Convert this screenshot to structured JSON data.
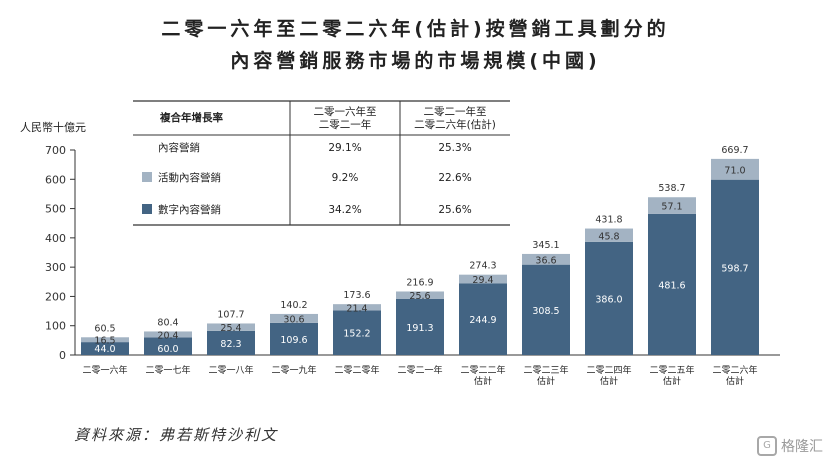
{
  "title_line1": "二零一六年至二零二六年(估計)按營銷工具劃分的",
  "title_line2": "內容營銷服務市場的市場規模(中國)",
  "source": "資料來源：弗若斯特沙利文",
  "watermark": "格隆汇",
  "colors": {
    "digital": "#436483",
    "event": "#a3b3c3",
    "table_line": "#333333"
  },
  "growth_table": {
    "header": [
      "複合年增長率",
      "二零一六年至\n二零二一年",
      "二零二一年至\n二零二六年(估計)"
    ],
    "rows": [
      {
        "label": "內容營銷",
        "swatch": null,
        "c1": "29.1%",
        "c2": "25.3%"
      },
      {
        "label": "活動內容營銷",
        "swatch": "event",
        "c1": "9.2%",
        "c2": "22.6%"
      },
      {
        "label": "數字內容營銷",
        "swatch": "digital",
        "c1": "34.2%",
        "c2": "25.6%"
      }
    ]
  },
  "chart_data": {
    "type": "bar",
    "stacked": true,
    "ylabel": "人民幣十億元",
    "ylim": [
      0,
      700
    ],
    "yticks": [
      0,
      100,
      200,
      300,
      400,
      500,
      600,
      700
    ],
    "categories": [
      "二零一六年",
      "二零一七年",
      "二零一八年",
      "二零一九年",
      "二零二零年",
      "二零二一年",
      "二零二二年\n估計",
      "二零二三年\n估計",
      "二零二四年\n估計",
      "二零二五年\n估計",
      "二零二六年\n估計"
    ],
    "series": [
      {
        "name": "數字內容營銷",
        "values": [
          44.0,
          60.0,
          82.3,
          109.6,
          152.2,
          191.3,
          244.9,
          308.5,
          386.0,
          481.6,
          598.7
        ]
      },
      {
        "name": "活動內容營銷",
        "values": [
          16.5,
          20.4,
          25.4,
          30.6,
          21.4,
          25.6,
          29.4,
          36.6,
          45.8,
          57.1,
          71.0
        ]
      }
    ],
    "totals": [
      60.5,
      80.4,
      107.7,
      140.2,
      173.6,
      216.9,
      274.3,
      345.1,
      431.8,
      538.7,
      669.7
    ],
    "labels": {
      "digital": [
        "44.0",
        "60.0",
        "82.3",
        "109.6",
        "152.2",
        "191.3",
        "244.9",
        "308.5",
        "386.0",
        "481.6",
        "598.7"
      ],
      "event": [
        "16.5",
        "20.4",
        "25.4",
        "30.6",
        "21.4",
        "25.6",
        "29.4",
        "36.6",
        "45.8",
        "57.1",
        "71.0"
      ],
      "totals": [
        "60.5",
        "80.4",
        "107.7",
        "140.2",
        "173.6",
        "216.9",
        "274.3",
        "345.1",
        "431.8",
        "538.7",
        "669.7"
      ]
    }
  }
}
